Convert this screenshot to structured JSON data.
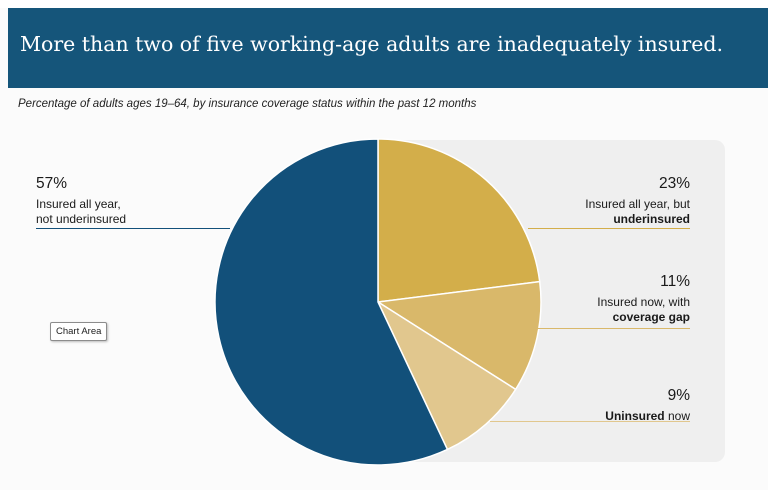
{
  "title": "More than two of five working-age adults are inadequately insured.",
  "subtitle": "Percentage of adults ages 19–64, by insurance coverage status within the past 12 months",
  "tooltip": "Chart Area",
  "colors": {
    "header_bg": "#15557a",
    "insured_all_year": "#12507a",
    "underinsured": "#d3ae4a",
    "coverage_gap": "#d9b86a",
    "uninsured": "#e1c78e",
    "panel_bg": "#efefef"
  },
  "labels": {
    "insured": {
      "pct": "57%",
      "line1": "Insured all year,",
      "line2": "not underinsured"
    },
    "underinsured": {
      "pct": "23%",
      "line1": "Insured all year, but",
      "line2_bold": "underinsured"
    },
    "gap": {
      "pct": "11%",
      "line1": "Insured now, with",
      "line2_bold": "coverage gap"
    },
    "uninsured": {
      "pct": "9%",
      "bold": "Uninsured",
      "rest": " now"
    }
  },
  "chart_data": {
    "type": "pie",
    "title": "More than two of five working-age adults are inadequately insured.",
    "subtitle": "Percentage of adults ages 19–64, by insurance coverage status within the past 12 months",
    "unit": "%",
    "slices": [
      {
        "label": "Insured all year, but underinsured",
        "value": 23,
        "color": "#d3ae4a"
      },
      {
        "label": "Insured now, with coverage gap",
        "value": 11,
        "color": "#d9b86a"
      },
      {
        "label": "Uninsured now",
        "value": 9,
        "color": "#e1c78e"
      },
      {
        "label": "Insured all year, not underinsured",
        "value": 57,
        "color": "#12507a"
      }
    ],
    "start_angle": "12 o'clock",
    "direction": "clockwise",
    "legend": "none (direct labels)"
  }
}
